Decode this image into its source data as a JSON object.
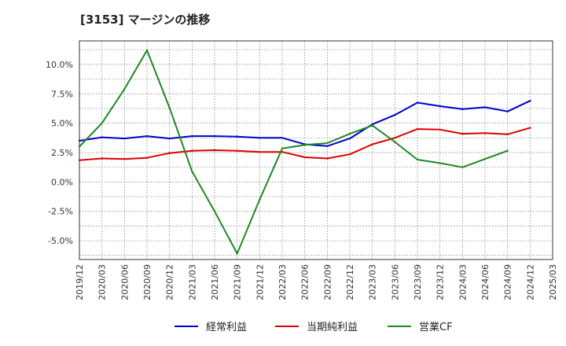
{
  "chart_data": {
    "type": "line",
    "title": "[3153]  マージンの推移",
    "xlabel": "",
    "ylabel": "",
    "x": [
      "2019/12",
      "2020/03",
      "2020/06",
      "2020/09",
      "2020/12",
      "2021/03",
      "2021/06",
      "2021/09",
      "2021/12",
      "2022/03",
      "2022/06",
      "2022/09",
      "2022/12",
      "2023/03",
      "2023/06",
      "2023/09",
      "2023/12",
      "2024/03",
      "2024/06",
      "2024/09",
      "2024/12",
      "2025/03"
    ],
    "y_tick_labels": [
      "10.0%",
      "7.5%",
      "5.0%",
      "2.5%",
      "0.0%",
      "-2.5%",
      "-5.0%"
    ],
    "y_ticks": [
      10.0,
      7.5,
      5.0,
      2.5,
      0.0,
      -2.5,
      -5.0
    ],
    "ylim": [
      -6.6,
      12.0
    ],
    "grid": true,
    "legend_position": "bottom",
    "series": [
      {
        "name": "経常利益",
        "color": "#0000cc",
        "values": [
          3.5,
          3.8,
          3.7,
          3.9,
          3.7,
          3.9,
          3.9,
          3.85,
          3.75,
          3.75,
          3.2,
          3.05,
          3.7,
          4.9,
          5.7,
          6.75,
          6.45,
          6.2,
          6.35,
          6.0,
          6.9,
          null
        ]
      },
      {
        "name": "当期純利益",
        "color": "#dd0000",
        "values": [
          1.85,
          2.0,
          1.95,
          2.05,
          2.45,
          2.65,
          2.7,
          2.65,
          2.55,
          2.55,
          2.1,
          2.0,
          2.35,
          3.2,
          3.75,
          4.5,
          4.45,
          4.1,
          4.15,
          4.05,
          4.6,
          null
        ]
      },
      {
        "name": "営業CF",
        "color": "#228822",
        "values": [
          3.0,
          5.0,
          7.9,
          11.2,
          6.3,
          0.9,
          -2.5,
          -6.1,
          -1.5,
          2.85,
          3.15,
          3.3,
          4.1,
          4.8,
          3.4,
          1.9,
          1.6,
          1.25,
          1.95,
          2.65,
          null,
          null
        ]
      }
    ]
  }
}
